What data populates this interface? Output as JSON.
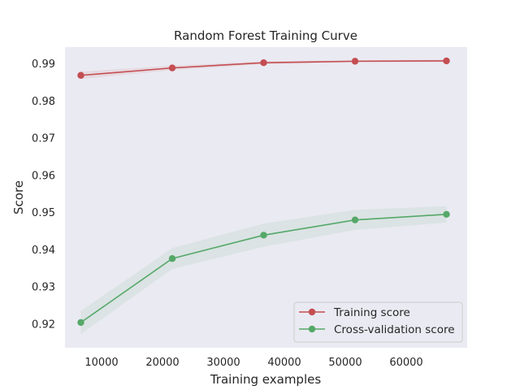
{
  "chart_data": {
    "type": "line",
    "title": "Random Forest Training Curve",
    "xlabel": "Training examples",
    "ylabel": "Score",
    "xlim": [
      4000,
      70000
    ],
    "ylim": [
      0.9135,
      0.9944
    ],
    "xticks": [
      10000,
      20000,
      30000,
      40000,
      50000,
      60000
    ],
    "yticks": [
      0.92,
      0.93,
      0.94,
      0.95,
      0.96,
      0.97,
      0.98,
      0.99
    ],
    "grid": false,
    "legend_position": "lower-right",
    "x": [
      6600,
      21600,
      36600,
      51600,
      66600
    ],
    "series": [
      {
        "name": "Training score",
        "color": "#c44e52",
        "values": [
          0.9868,
          0.9888,
          0.9902,
          0.9906,
          0.9907
        ],
        "band_lower": [
          0.9858,
          0.9882,
          0.9898,
          0.9903,
          0.9904
        ],
        "band_upper": [
          0.9878,
          0.9894,
          0.9906,
          0.9909,
          0.991
        ]
      },
      {
        "name": "Cross-validation score",
        "color": "#55a868",
        "values": [
          0.9203,
          0.9375,
          0.9438,
          0.9479,
          0.9494
        ],
        "band_lower": [
          0.9172,
          0.9347,
          0.9407,
          0.9452,
          0.9472
        ],
        "band_upper": [
          0.9234,
          0.9403,
          0.9469,
          0.9506,
          0.9516
        ]
      }
    ]
  }
}
